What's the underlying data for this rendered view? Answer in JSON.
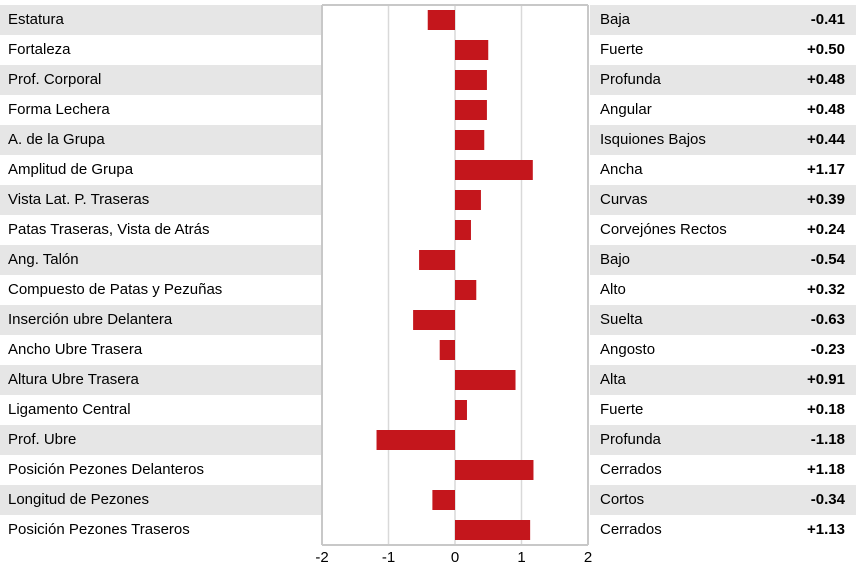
{
  "chart_data": {
    "type": "bar",
    "orientation": "horizontal",
    "color": "#c4161c",
    "categories": [
      "Estatura",
      "Fortaleza",
      "Prof. Corporal",
      "Forma Lechera",
      "A. de la Grupa",
      "Amplitud de Grupa",
      "Vista Lat. P. Traseras",
      "Patas Traseras, Vista de Atrás",
      "Ang. Talón",
      "Compuesto de Patas y Pezuñas",
      "Inserción ubre Delantera",
      "Ancho Ubre Trasera",
      "Altura Ubre Trasera",
      "Ligamento Central",
      "Prof. Ubre",
      "Posición Pezones Delanteros",
      "Longitud de Pezones",
      "Posición Pezones Traseros"
    ],
    "descriptors": [
      "Baja",
      "Fuerte",
      "Profunda",
      "Angular",
      "Isquiones Bajos",
      "Ancha",
      "Curvas",
      "Corvejónes Rectos",
      "Bajo",
      "Alto",
      "Suelta",
      "Angosto",
      "Alta",
      "Fuerte",
      "Profunda",
      "Cerrados",
      "Cortos",
      "Cerrados"
    ],
    "values": [
      -0.41,
      0.5,
      0.48,
      0.48,
      0.44,
      1.17,
      0.39,
      0.24,
      -0.54,
      0.32,
      -0.63,
      -0.23,
      0.91,
      0.18,
      -1.18,
      1.18,
      -0.34,
      1.13
    ],
    "value_labels": [
      "-0.41",
      "+0.50",
      "+0.48",
      "+0.48",
      "+0.44",
      "+1.17",
      "+0.39",
      "+0.24",
      "-0.54",
      "+0.32",
      "-0.63",
      "-0.23",
      "+0.91",
      "+0.18",
      "-1.18",
      "+1.18",
      "-0.34",
      "+1.13"
    ],
    "xlim": [
      -2,
      2
    ],
    "xticks": [
      -2,
      -1,
      0,
      1,
      2
    ],
    "grid": true
  }
}
